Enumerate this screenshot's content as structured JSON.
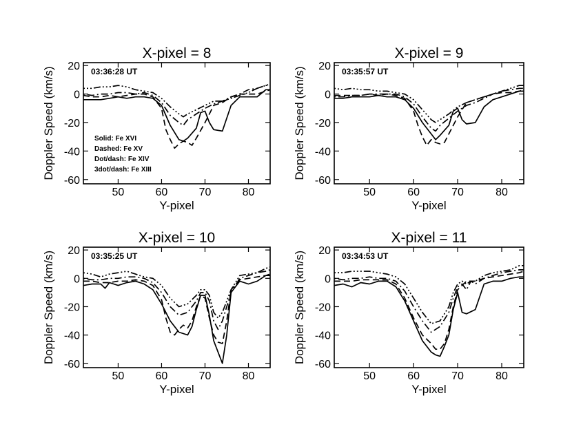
{
  "chart_data": [
    {
      "type": "line",
      "title": "X-pixel = 8",
      "timestamp": "03:36:28 UT",
      "xlabel": "Y-pixel",
      "ylabel": "Doppler Speed (km/s)",
      "xlim": [
        42,
        85
      ],
      "ylim": [
        -63,
        22
      ],
      "xticks": [
        "50",
        "60",
        "70",
        "80"
      ],
      "yticks": [
        "20",
        "0",
        "-20",
        "-40",
        "-60"
      ],
      "legend": [
        "Solid: Fe XVI",
        "Dashed: Fe XV",
        "Dot/dash: Fe XIV",
        "3dot/dash: Fe XIII"
      ],
      "series": [
        {
          "name": "Fe XVI",
          "style": "solid",
          "x": [
            42,
            44,
            46,
            48,
            50,
            52,
            54,
            56,
            58,
            60,
            62,
            64,
            65,
            66,
            68,
            69,
            70,
            71,
            72,
            74,
            76,
            78,
            80,
            82,
            84,
            85
          ],
          "y": [
            -4,
            -4,
            -4,
            -3,
            -2,
            -3,
            -2,
            -2,
            -3,
            -8,
            -22,
            -32,
            -33,
            -31,
            -24,
            -13,
            -12,
            -20,
            -25,
            -26,
            -8,
            -2,
            -2,
            -2,
            3,
            3
          ]
        },
        {
          "name": "Fe XV",
          "style": "dashed",
          "x": [
            42,
            44,
            46,
            48,
            50,
            52,
            54,
            56,
            58,
            60,
            61,
            62,
            63,
            64,
            65,
            66,
            67,
            68,
            70,
            72,
            74,
            76,
            78,
            80,
            82,
            84,
            85
          ],
          "y": [
            -1,
            -2,
            -2,
            -1,
            -2,
            -1,
            0,
            0,
            -2,
            -10,
            -25,
            -32,
            -38,
            -35,
            -33,
            -34,
            -36,
            -31,
            -20,
            -8,
            -6,
            -2,
            0,
            0,
            0,
            2,
            3
          ]
        },
        {
          "name": "Fe XIV",
          "style": "dotdash",
          "x": [
            42,
            44,
            46,
            48,
            50,
            52,
            54,
            56,
            58,
            60,
            62,
            64,
            65,
            66,
            68,
            70,
            72,
            74,
            76,
            78,
            80,
            82,
            84,
            85
          ],
          "y": [
            0,
            -1,
            0,
            0,
            1,
            1,
            0,
            1,
            -1,
            -6,
            -15,
            -20,
            -22,
            -18,
            -14,
            -10,
            -7,
            -5,
            -2,
            0,
            3,
            4,
            6,
            6
          ]
        },
        {
          "name": "Fe XIII",
          "style": "3dotdash",
          "x": [
            42,
            44,
            46,
            48,
            50,
            52,
            54,
            56,
            58,
            60,
            62,
            64,
            65,
            66,
            68,
            70,
            72,
            74,
            76,
            78,
            80,
            82,
            84,
            85
          ],
          "y": [
            4,
            4,
            5,
            5,
            6,
            5,
            3,
            2,
            1,
            -3,
            -9,
            -14,
            -16,
            -14,
            -11,
            -8,
            -5,
            -5,
            -3,
            -1,
            1,
            4,
            6,
            7
          ]
        }
      ]
    },
    {
      "type": "line",
      "title": "X-pixel = 9",
      "timestamp": "03:35:57 UT",
      "xlabel": "Y-pixel",
      "ylabel": "Doppler Speed (km/s)",
      "xlim": [
        42,
        85
      ],
      "ylim": [
        -63,
        22
      ],
      "xticks": [
        "50",
        "60",
        "70",
        "80"
      ],
      "yticks": [
        "20",
        "0",
        "-20",
        "-40",
        "-60"
      ],
      "series": [
        {
          "name": "Fe XVI",
          "style": "solid",
          "x": [
            42,
            44,
            46,
            48,
            50,
            52,
            54,
            56,
            58,
            60,
            62,
            64,
            65,
            66,
            68,
            69,
            70,
            71,
            72,
            74,
            76,
            78,
            80,
            82,
            84,
            85
          ],
          "y": [
            -3,
            -3,
            -2,
            -2,
            -2,
            -1,
            -2,
            -2,
            -4,
            -10,
            -20,
            -28,
            -32,
            -29,
            -22,
            -12,
            -10,
            -18,
            -21,
            -20,
            -9,
            -4,
            -2,
            0,
            2,
            2
          ]
        },
        {
          "name": "Fe XV",
          "style": "dashed",
          "x": [
            42,
            44,
            46,
            48,
            50,
            52,
            54,
            56,
            58,
            60,
            61,
            62,
            63,
            64,
            65,
            66,
            67,
            68,
            70,
            72,
            74,
            76,
            78,
            80,
            82,
            84,
            85
          ],
          "y": [
            -1,
            -1,
            -1,
            -1,
            0,
            -1,
            0,
            -1,
            -3,
            -12,
            -22,
            -30,
            -36,
            -32,
            -34,
            -35,
            -34,
            -28,
            -16,
            -6,
            -4,
            -2,
            0,
            1,
            1,
            2,
            3
          ]
        },
        {
          "name": "Fe XIV",
          "style": "dotdash",
          "x": [
            42,
            44,
            46,
            48,
            50,
            52,
            54,
            56,
            58,
            60,
            62,
            64,
            65,
            66,
            68,
            70,
            72,
            74,
            76,
            78,
            80,
            82,
            84,
            85
          ],
          "y": [
            -2,
            -2,
            -1,
            -1,
            0,
            0,
            0,
            0,
            -2,
            -7,
            -16,
            -24,
            -26,
            -22,
            -17,
            -12,
            -8,
            -6,
            -3,
            0,
            2,
            3,
            4,
            4
          ]
        },
        {
          "name": "Fe XIII",
          "style": "3dotdash",
          "x": [
            42,
            44,
            46,
            48,
            50,
            52,
            54,
            56,
            58,
            60,
            62,
            64,
            65,
            66,
            68,
            70,
            72,
            74,
            76,
            78,
            80,
            82,
            84,
            85
          ],
          "y": [
            4,
            3,
            4,
            3,
            3,
            2,
            2,
            1,
            0,
            -4,
            -11,
            -18,
            -20,
            -18,
            -14,
            -9,
            -6,
            -4,
            -2,
            0,
            2,
            4,
            6,
            6
          ]
        }
      ]
    },
    {
      "type": "line",
      "title": "X-pixel = 10",
      "timestamp": "03:35:25 UT",
      "xlabel": "Y-pixel",
      "ylabel": "Doppler Speed (km/s)",
      "xlim": [
        42,
        85
      ],
      "ylim": [
        -63,
        22
      ],
      "xticks": [
        "50",
        "60",
        "70",
        "80"
      ],
      "yticks": [
        "20",
        "0",
        "-20",
        "-40",
        "-60"
      ],
      "series": [
        {
          "name": "Fe XVI",
          "style": "solid",
          "x": [
            42,
            44,
            46,
            47,
            48,
            50,
            52,
            54,
            56,
            58,
            60,
            62,
            64,
            66,
            67,
            68,
            69,
            70,
            71,
            72,
            73,
            74,
            75,
            76,
            78,
            80,
            82,
            84,
            85
          ],
          "y": [
            -5,
            -4,
            -4,
            -7,
            -3,
            -5,
            -3,
            -2,
            -4,
            -8,
            -18,
            -30,
            -38,
            -40,
            -34,
            -22,
            -12,
            -12,
            -26,
            -44,
            -52,
            -60,
            -40,
            -10,
            -2,
            -4,
            -2,
            2,
            2
          ]
        },
        {
          "name": "Fe XV",
          "style": "dashed",
          "x": [
            42,
            44,
            46,
            48,
            50,
            52,
            54,
            56,
            58,
            60,
            61,
            62,
            63,
            64,
            65,
            66,
            67,
            68,
            69,
            70,
            71,
            72,
            73,
            74,
            75,
            76,
            78,
            80,
            82,
            84,
            85
          ],
          "y": [
            -2,
            -2,
            -3,
            -3,
            -2,
            -2,
            -1,
            -2,
            -5,
            -15,
            -28,
            -38,
            -40,
            -36,
            -33,
            -35,
            -30,
            -20,
            -12,
            -14,
            -28,
            -40,
            -45,
            -46,
            -30,
            -8,
            -1,
            0,
            1,
            2,
            3
          ]
        },
        {
          "name": "Fe XIV",
          "style": "dotdash",
          "x": [
            42,
            44,
            46,
            48,
            50,
            52,
            54,
            56,
            58,
            60,
            62,
            64,
            66,
            68,
            69,
            70,
            71,
            72,
            73,
            74,
            76,
            78,
            80,
            82,
            84,
            85
          ],
          "y": [
            0,
            -1,
            -1,
            0,
            0,
            1,
            1,
            0,
            -3,
            -10,
            -20,
            -26,
            -24,
            -16,
            -10,
            -10,
            -16,
            -30,
            -36,
            -30,
            -10,
            0,
            2,
            4,
            5,
            6
          ]
        },
        {
          "name": "Fe XIII",
          "style": "3dotdash",
          "x": [
            42,
            44,
            46,
            48,
            50,
            52,
            54,
            56,
            58,
            60,
            62,
            64,
            66,
            68,
            69,
            70,
            71,
            72,
            73,
            74,
            76,
            78,
            80,
            82,
            84,
            85
          ],
          "y": [
            4,
            3,
            1,
            3,
            4,
            5,
            3,
            1,
            0,
            -5,
            -14,
            -20,
            -18,
            -12,
            -8,
            -8,
            -12,
            -24,
            -28,
            -24,
            -8,
            2,
            3,
            4,
            7,
            8
          ]
        }
      ]
    },
    {
      "type": "line",
      "title": "X-pixel = 11",
      "timestamp": "03:34:53 UT",
      "xlabel": "Y-pixel",
      "ylabel": "Doppler Speed (km/s)",
      "xlim": [
        42,
        85
      ],
      "ylim": [
        -63,
        22
      ],
      "xticks": [
        "50",
        "60",
        "70",
        "80"
      ],
      "yticks": [
        "20",
        "0",
        "-20",
        "-40",
        "-60"
      ],
      "series": [
        {
          "name": "Fe XVI",
          "style": "solid",
          "x": [
            42,
            44,
            46,
            48,
            50,
            52,
            54,
            56,
            58,
            60,
            62,
            64,
            65,
            66,
            67,
            68,
            69,
            70,
            71,
            72,
            74,
            76,
            78,
            80,
            82,
            84,
            85
          ],
          "y": [
            -5,
            -4,
            -6,
            -3,
            -4,
            -2,
            -2,
            -6,
            -16,
            -30,
            -44,
            -52,
            -54,
            -55,
            -48,
            -40,
            -22,
            -10,
            -24,
            -25,
            -22,
            -4,
            -2,
            -2,
            0,
            1,
            1
          ]
        },
        {
          "name": "Fe XV",
          "style": "dashed",
          "x": [
            42,
            44,
            46,
            48,
            50,
            52,
            54,
            56,
            58,
            60,
            62,
            64,
            65,
            66,
            67,
            68,
            69,
            70,
            72,
            74,
            76,
            78,
            80,
            82,
            84,
            85
          ],
          "y": [
            -2,
            -2,
            -2,
            -1,
            -1,
            -1,
            -1,
            -4,
            -14,
            -28,
            -40,
            -46,
            -50,
            -50,
            -46,
            -36,
            -20,
            -8,
            -2,
            -2,
            0,
            1,
            2,
            3,
            4,
            5
          ]
        },
        {
          "name": "Fe XIV",
          "style": "dotdash",
          "x": [
            42,
            44,
            46,
            48,
            50,
            52,
            54,
            56,
            58,
            60,
            62,
            64,
            66,
            68,
            69,
            70,
            71,
            72,
            73,
            74,
            76,
            78,
            80,
            82,
            84,
            85
          ],
          "y": [
            0,
            -1,
            0,
            0,
            1,
            0,
            0,
            -2,
            -9,
            -20,
            -30,
            -38,
            -34,
            -24,
            -14,
            -6,
            -4,
            -8,
            -2,
            -4,
            0,
            2,
            4,
            5,
            6,
            6
          ]
        },
        {
          "name": "Fe XIII",
          "style": "3dotdash",
          "x": [
            42,
            44,
            46,
            48,
            50,
            52,
            54,
            56,
            58,
            60,
            62,
            64,
            66,
            68,
            69,
            70,
            71,
            72,
            73,
            74,
            76,
            78,
            80,
            82,
            84,
            85
          ],
          "y": [
            4,
            4,
            5,
            5,
            5,
            4,
            3,
            1,
            -4,
            -14,
            -24,
            -32,
            -30,
            -20,
            -10,
            -4,
            -2,
            -4,
            -2,
            -2,
            2,
            4,
            5,
            6,
            9,
            9
          ]
        }
      ]
    }
  ]
}
